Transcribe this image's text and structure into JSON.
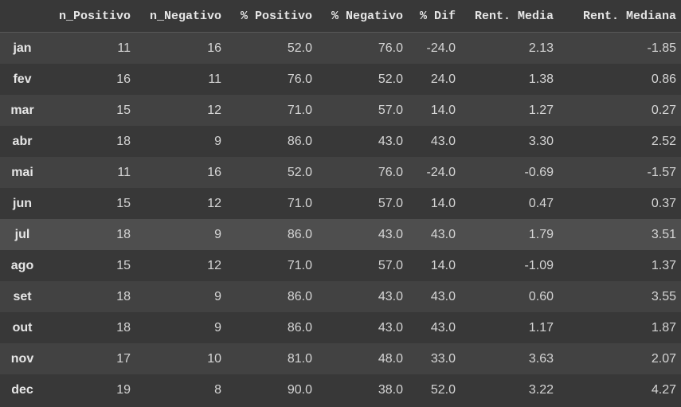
{
  "table": {
    "columns": [
      "",
      "n_Positivo",
      "n_Negativo",
      "% Positivo",
      "% Negativo",
      "% Dif",
      "Rent. Media",
      "Rent. Mediana"
    ],
    "rows": [
      {
        "label": "jan",
        "cells": [
          "11",
          "16",
          "52.0",
          "76.0",
          "-24.0",
          "2.13",
          "-1.85"
        ]
      },
      {
        "label": "fev",
        "cells": [
          "16",
          "11",
          "76.0",
          "52.0",
          "24.0",
          "1.38",
          "0.86"
        ]
      },
      {
        "label": "mar",
        "cells": [
          "15",
          "12",
          "71.0",
          "57.0",
          "14.0",
          "1.27",
          "0.27"
        ]
      },
      {
        "label": "abr",
        "cells": [
          "18",
          "9",
          "86.0",
          "43.0",
          "43.0",
          "3.30",
          "2.52"
        ]
      },
      {
        "label": "mai",
        "cells": [
          "11",
          "16",
          "52.0",
          "76.0",
          "-24.0",
          "-0.69",
          "-1.57"
        ]
      },
      {
        "label": "jun",
        "cells": [
          "15",
          "12",
          "71.0",
          "57.0",
          "14.0",
          "0.47",
          "0.37"
        ]
      },
      {
        "label": "jul",
        "cells": [
          "18",
          "9",
          "86.0",
          "43.0",
          "43.0",
          "1.79",
          "3.51"
        ]
      },
      {
        "label": "ago",
        "cells": [
          "15",
          "12",
          "71.0",
          "57.0",
          "14.0",
          "-1.09",
          "1.37"
        ]
      },
      {
        "label": "set",
        "cells": [
          "18",
          "9",
          "86.0",
          "43.0",
          "43.0",
          "0.60",
          "3.55"
        ]
      },
      {
        "label": "out",
        "cells": [
          "18",
          "9",
          "86.0",
          "43.0",
          "43.0",
          "1.17",
          "1.87"
        ]
      },
      {
        "label": "nov",
        "cells": [
          "17",
          "10",
          "81.0",
          "48.0",
          "33.0",
          "3.63",
          "2.07"
        ]
      },
      {
        "label": "dec",
        "cells": [
          "19",
          "8",
          "90.0",
          "38.0",
          "52.0",
          "3.22",
          "4.27"
        ]
      }
    ],
    "hovered_row": "jul"
  },
  "colors": {
    "background": "#383838",
    "row_stripe": "#424242",
    "row_hover": "#4e4e4e",
    "text": "#d5d5d5"
  }
}
